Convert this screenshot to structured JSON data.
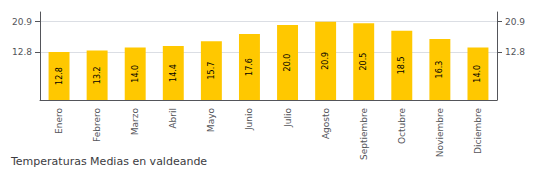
{
  "chart_data": {
    "type": "bar",
    "title": "Temperaturas Medias en valdeande",
    "categories": [
      "Enero",
      "Febrero",
      "Marzo",
      "Abril",
      "Mayo",
      "Junio",
      "Julio",
      "Agosto",
      "Septiembre",
      "Octubre",
      "Noviembre",
      "Diciembre"
    ],
    "values": [
      12.8,
      13.2,
      14.0,
      14.4,
      15.7,
      17.6,
      20.0,
      20.9,
      20.5,
      18.5,
      16.3,
      14.0
    ],
    "value_labels": [
      "12.8",
      "13.2",
      "14.0",
      "14.4",
      "15.7",
      "17.6",
      "20.0",
      "20.9",
      "20.5",
      "18.5",
      "16.3",
      "14.0"
    ],
    "data_labels": true,
    "color": "#FFC800",
    "ylim": [
      0,
      23.5
    ],
    "yticks": [
      12.8,
      20.9
    ],
    "grid": true
  }
}
